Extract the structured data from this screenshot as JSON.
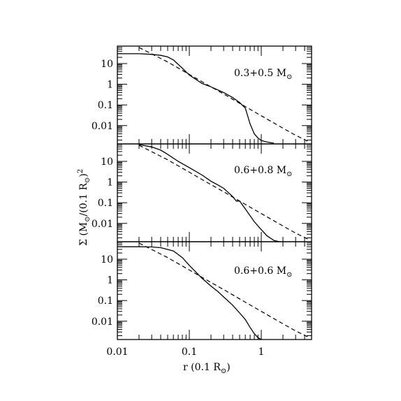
{
  "chart_data": {
    "type": "line",
    "xlabel": "r (0.1 R",
    "xlabel_sub": "⊙",
    "xlabel_close": ")",
    "ylabel": "Σ (M",
    "ylabel_sub1": "⊙",
    "ylabel_mid": "/(0.1 R",
    "ylabel_sub2": "⊙",
    "ylabel_end": ")",
    "ylabel_sup": "2",
    "x_scale": "log",
    "y_scale": "log",
    "xlim": [
      0.01,
      5
    ],
    "ylim": [
      0.0013,
      70
    ],
    "x_ticks": [
      0.01,
      0.1,
      1
    ],
    "x_tick_labels": [
      "0.01",
      "0.1",
      "1"
    ],
    "y_ticks": [
      10,
      1,
      0.1,
      0.01
    ],
    "y_tick_labels": [
      "10",
      "1",
      "0.1",
      "0.01"
    ],
    "panels": [
      {
        "label": "0.3+0.5 M",
        "label_sub": "⊙",
        "series": [
          {
            "style": "solid",
            "x": [
              0.01,
              0.02,
              0.03,
              0.04,
              0.05,
              0.06,
              0.08,
              0.1,
              0.15,
              0.2,
              0.3,
              0.4,
              0.5,
              0.6,
              0.7,
              0.8,
              0.9,
              1.0,
              1.2,
              1.5
            ],
            "y": [
              30,
              30,
              28,
              25,
              21,
              15,
              6,
              2.8,
              1.1,
              0.75,
              0.4,
              0.23,
              0.13,
              0.07,
              0.012,
              0.004,
              0.0025,
              0.0019,
              0.0016,
              0.0014
            ]
          },
          {
            "style": "dashed",
            "x": [
              0.02,
              0.05,
              0.1,
              0.2,
              0.3,
              0.5,
              1,
              2,
              3,
              4.5
            ],
            "y": [
              60,
              12,
              3,
              0.75,
              0.34,
              0.12,
              0.03,
              0.0075,
              0.0034,
              0.0017
            ]
          }
        ]
      },
      {
        "label": "0.6+0.8 M",
        "label_sub": "⊙",
        "series": [
          {
            "style": "solid",
            "x": [
              0.02,
              0.03,
              0.04,
              0.05,
              0.07,
              0.1,
              0.15,
              0.2,
              0.25,
              0.3,
              0.4,
              0.45,
              0.5,
              0.6,
              0.8,
              1.0,
              1.2,
              1.5,
              1.8
            ],
            "y": [
              65,
              50,
              35,
              22,
              10,
              5,
              2.2,
              1.1,
              0.72,
              0.5,
              0.2,
              0.12,
              0.12,
              0.05,
              0.012,
              0.005,
              0.0025,
              0.0015,
              0.0013
            ]
          },
          {
            "style": "dashed",
            "x": [
              0.02,
              0.05,
              0.1,
              0.2,
              0.3,
              0.5,
              1,
              2,
              3,
              4.5
            ],
            "y": [
              60,
              12,
              3,
              0.75,
              0.34,
              0.12,
              0.03,
              0.0075,
              0.0034,
              0.0017
            ]
          }
        ]
      },
      {
        "label": "0.6+0.6 M",
        "label_sub": "⊙",
        "series": [
          {
            "style": "solid",
            "x": [
              0.01,
              0.02,
              0.03,
              0.04,
              0.06,
              0.08,
              0.1,
              0.15,
              0.2,
              0.25,
              0.3,
              0.4,
              0.5,
              0.6,
              0.7,
              0.8,
              0.9,
              1.0
            ],
            "y": [
              40,
              40,
              39,
              36,
              25,
              12,
              5,
              1.2,
              0.5,
              0.27,
              0.15,
              0.06,
              0.025,
              0.012,
              0.005,
              0.0025,
              0.0016,
              0.0013
            ]
          },
          {
            "style": "dashed",
            "x": [
              0.02,
              0.05,
              0.1,
              0.2,
              0.3,
              0.5,
              1,
              2,
              3,
              4.5
            ],
            "y": [
              60,
              12,
              3,
              0.75,
              0.34,
              0.12,
              0.03,
              0.0075,
              0.0034,
              0.0017
            ]
          }
        ]
      }
    ]
  }
}
